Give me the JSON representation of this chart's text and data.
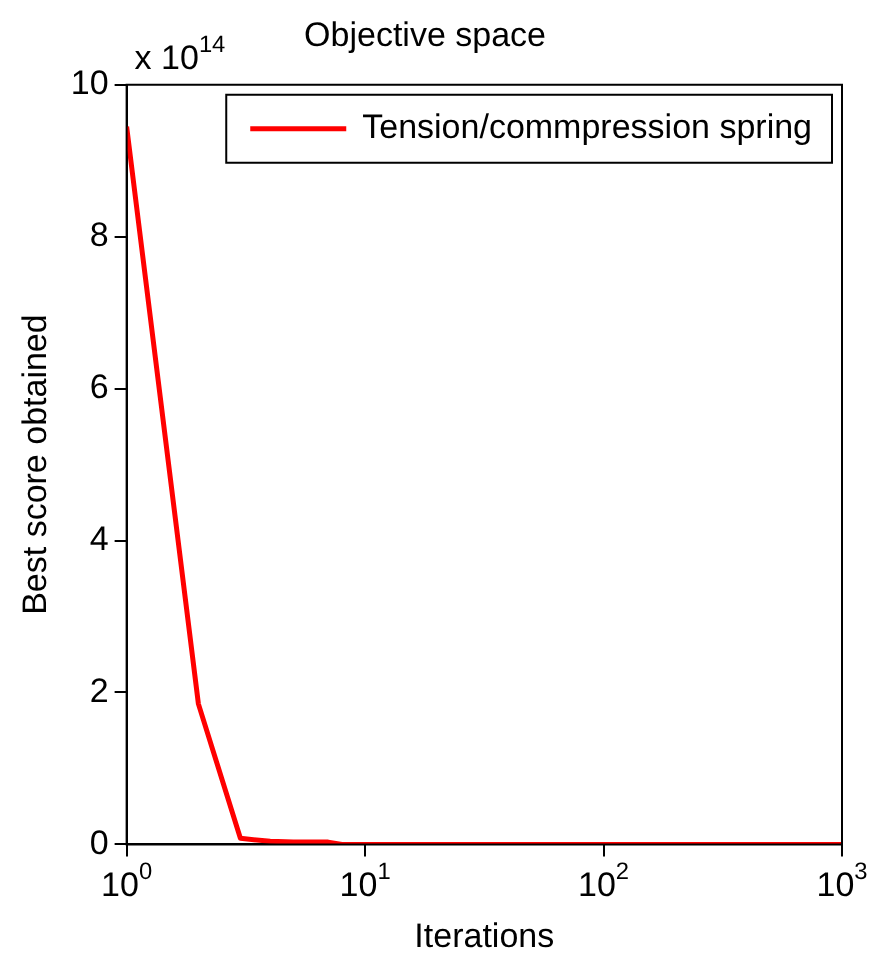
{
  "chart_data": {
    "type": "line",
    "title": "Objective space",
    "xlabel": "Iterations",
    "ylabel": "Best score obtained",
    "annotations": [
      "x 10$^{14}$"
    ],
    "x": [
      1,
      2,
      3,
      4,
      5,
      6,
      7,
      8,
      10,
      20,
      50,
      100,
      1000
    ],
    "series": [
      {
        "name": "Tension/commpression spring",
        "color": "#ff0000",
        "values": [
          9.45,
          1.85,
          0.08,
          0.04,
          0.03,
          0.03,
          0.03,
          0,
          0,
          0,
          0,
          0,
          0
        ]
      }
    ],
    "log": "x",
    "xlim": [
      1,
      1000
    ],
    "xticks": [
      {
        "value": 1,
        "label": "10$^{0}$"
      },
      {
        "value": 10,
        "label": "10$^{1}$"
      },
      {
        "value": 100,
        "label": "10$^{2}$"
      },
      {
        "value": 1000,
        "label": "10$^{3}$"
      }
    ],
    "ylim": [
      0,
      10
    ],
    "yticks": [
      0,
      2,
      4,
      6,
      8,
      10
    ],
    "grid": false,
    "legend": "top right",
    "marker": "none",
    "line_style": "solid"
  }
}
